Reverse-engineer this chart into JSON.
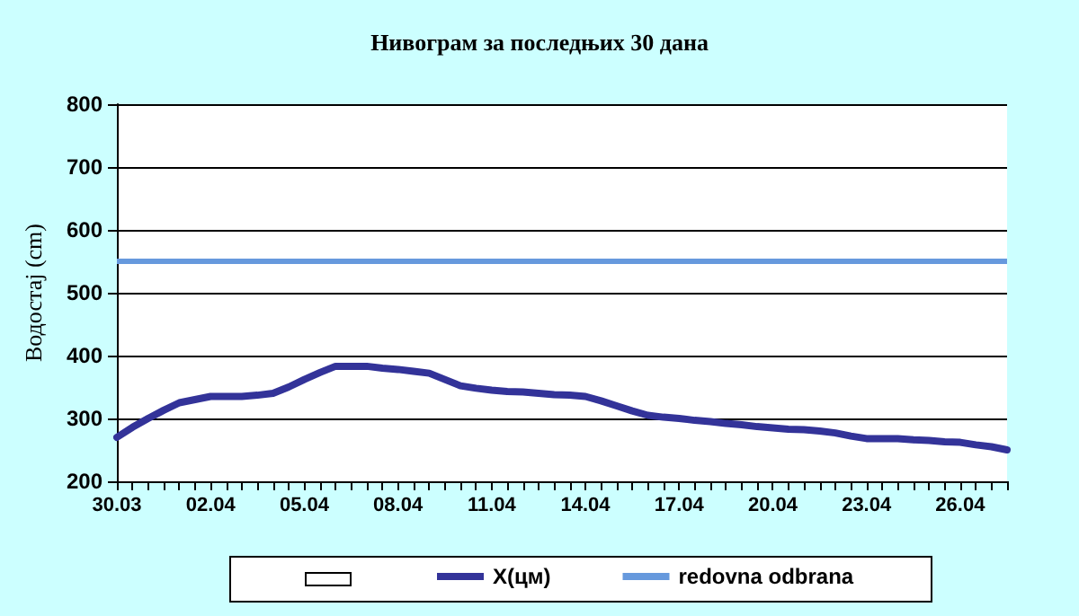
{
  "chart_data": {
    "type": "line",
    "title": "Нивограм за последњих 30 дана",
    "ylabel": "Водостај (cm)",
    "categories": [
      "30.03",
      null,
      null,
      null,
      null,
      null,
      "02.04",
      null,
      null,
      null,
      null,
      null,
      "05.04",
      null,
      null,
      null,
      null,
      null,
      "08.04",
      null,
      null,
      null,
      null,
      null,
      "11.04",
      null,
      null,
      null,
      null,
      null,
      "14.04",
      null,
      null,
      null,
      null,
      null,
      "17.04",
      null,
      null,
      null,
      null,
      null,
      "20.04",
      null,
      null,
      null,
      null,
      null,
      "23.04",
      null,
      null,
      null,
      null,
      null,
      "26.04",
      null,
      null,
      null
    ],
    "series": [
      {
        "name": "Х(цм)",
        "color": "#333399",
        "values": [
          270,
          286,
          300,
          313,
          325,
          330,
          335,
          335,
          335,
          337,
          340,
          350,
          362,
          373,
          383,
          383,
          383,
          380,
          378,
          375,
          372,
          362,
          352,
          348,
          345,
          343,
          342,
          340,
          338,
          337,
          335,
          328,
          320,
          312,
          305,
          302,
          300,
          297,
          295,
          292,
          290,
          287,
          285,
          283,
          282,
          280,
          277,
          272,
          268,
          268,
          268,
          266,
          265,
          263,
          262,
          258,
          255,
          250
        ]
      }
    ],
    "ylim": [
      200,
      800
    ],
    "yticks": [
      200,
      300,
      400,
      500,
      600,
      700,
      800
    ],
    "grid": "y",
    "legend": "bottom",
    "marker": "none",
    "line_style": "solid",
    "ref_lines": [
      {
        "axis": "y",
        "value": 550,
        "label": "redovna odbrana",
        "color": "#6699dd"
      }
    ]
  }
}
